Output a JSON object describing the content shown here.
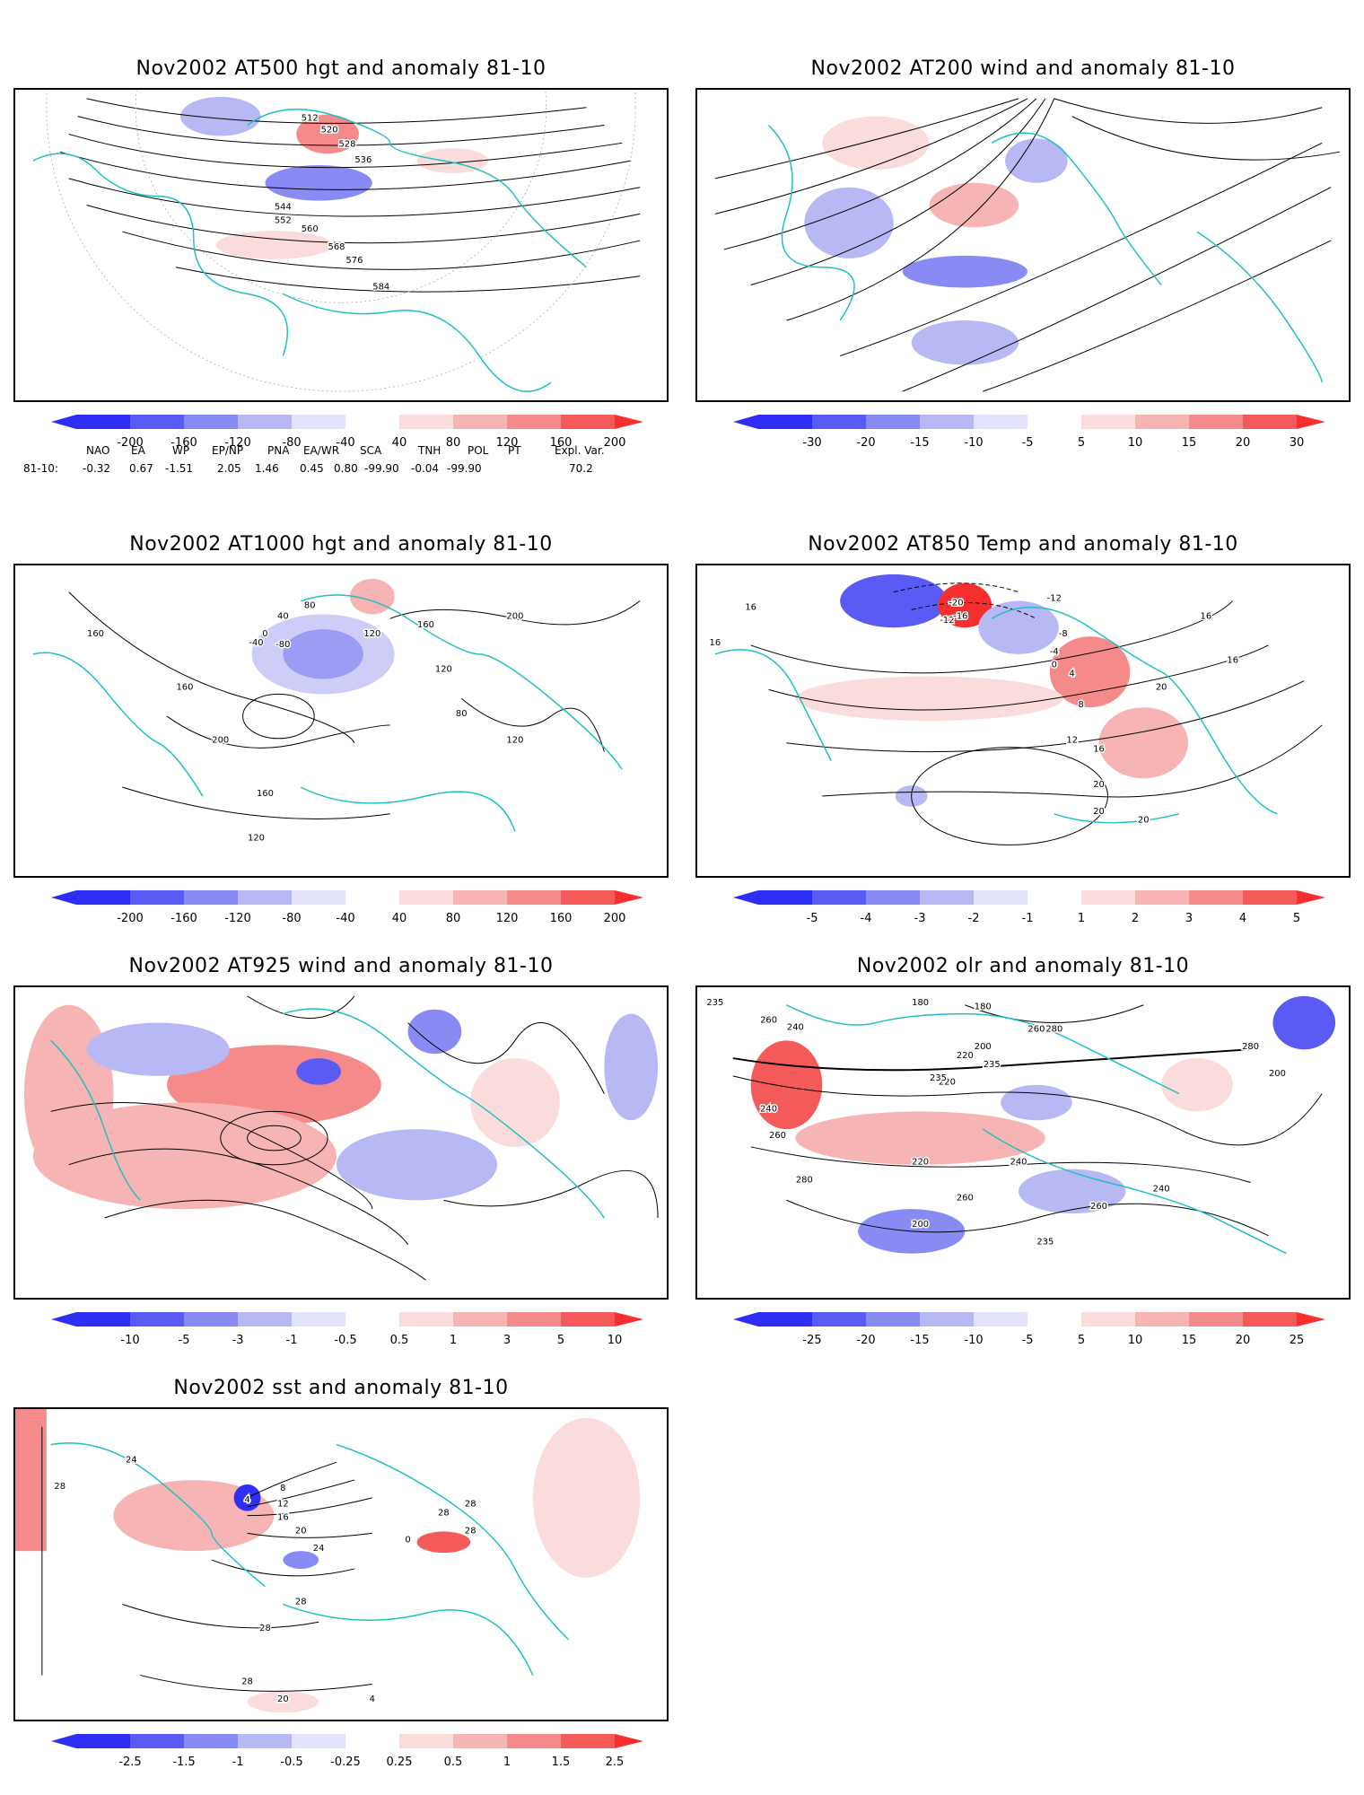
{
  "panels": [
    {
      "id": "p1",
      "title": "Nov2002 AT500 hgt and anomaly 81-10",
      "colorbar": {
        "labels": [
          "-200",
          "-160",
          "-120",
          "-80",
          "-40",
          "40",
          "80",
          "120",
          "160",
          "200"
        ]
      },
      "contour_labels": [
        "512",
        "520",
        "528",
        "536",
        "544",
        "552",
        "560",
        "568",
        "576",
        "584"
      ]
    },
    {
      "id": "p2",
      "title": "Nov2002 AT200 wind and anomaly 81-10",
      "colorbar": {
        "labels": [
          "-30",
          "-20",
          "-15",
          "-10",
          "-5",
          "5",
          "10",
          "15",
          "20",
          "30"
        ]
      },
      "contour_labels": []
    },
    {
      "id": "p3",
      "title": "Nov2002 AT1000 hgt and anomaly 81-10",
      "colorbar": {
        "labels": [
          "-200",
          "-160",
          "-120",
          "-80",
          "-40",
          "40",
          "80",
          "120",
          "160",
          "200"
        ]
      },
      "contour_labels": [
        "160",
        "160",
        "200",
        "160",
        "120",
        "-80",
        "-40",
        "0",
        "40",
        "80",
        "120",
        "160",
        "200",
        "120",
        "80",
        "120"
      ]
    },
    {
      "id": "p4",
      "title": "Nov2002 AT850 Temp and anomaly 81-10",
      "colorbar": {
        "labels": [
          "-5",
          "-4",
          "-3",
          "-2",
          "-1",
          "1",
          "2",
          "3",
          "4",
          "5"
        ]
      },
      "contour_labels": [
        "16",
        "16",
        "-12",
        "-20",
        "-16",
        "-12",
        "-8",
        "-4",
        "0",
        "4",
        "8",
        "12",
        "16",
        "16",
        "20",
        "16",
        "20",
        "20",
        "20"
      ]
    },
    {
      "id": "p5",
      "title": "Nov2002 AT925 wind and anomaly 81-10",
      "colorbar": {
        "labels": [
          "-10",
          "-5",
          "-3",
          "-1",
          "-0.5",
          "0.5",
          "1",
          "3",
          "5",
          "10"
        ]
      },
      "contour_labels": []
    },
    {
      "id": "p6",
      "title": "Nov2002 olr and anomaly 81-10",
      "colorbar": {
        "labels": [
          "-25",
          "-20",
          "-15",
          "-10",
          "-5",
          "5",
          "10",
          "15",
          "20",
          "25"
        ]
      },
      "contour_labels": [
        "235",
        "260",
        "240",
        "180",
        "180",
        "200",
        "220",
        "235",
        "260",
        "280",
        "220",
        "235",
        "240",
        "260",
        "280",
        "200",
        "220",
        "240",
        "260",
        "235",
        "240",
        "260",
        "280",
        "200"
      ]
    },
    {
      "id": "p7",
      "title": "Nov2002 sst and anomaly 81-10",
      "colorbar": {
        "labels": [
          "-2.5",
          "-1.5",
          "-1",
          "-0.5",
          "-0.25",
          "0.25",
          "0.5",
          "1",
          "1.5",
          "2.5"
        ]
      },
      "contour_labels": [
        "28",
        "24",
        "4",
        "8",
        "12",
        "16",
        "20",
        "24",
        "28",
        "28",
        "28",
        "20",
        "4",
        "0",
        "28",
        "28",
        "28"
      ]
    }
  ],
  "indices": {
    "headers": [
      "NAO",
      "EA",
      "WP",
      "EP/NP",
      "PNA",
      "EA/WR",
      "SCA",
      "TNH",
      "POL",
      "PT",
      "Expl. Var."
    ],
    "row_label": "81-10:",
    "values": [
      "-0.32",
      "0.67",
      "-1.51",
      "2.05",
      "1.46",
      "0.45",
      "0.80",
      "-99.90",
      "-0.04",
      "-99.90",
      "70.2"
    ]
  },
  "colors": {
    "coast": "#20c0c0",
    "contour": "#000000",
    "neg_ramp": [
      "#2e2ef5",
      "#5a5af5",
      "#8a8af5",
      "#b8b8f5",
      "#e2e2fa"
    ],
    "pos_ramp": [
      "#fadcdc",
      "#f7b4b4",
      "#f58a8a",
      "#f55a5a",
      "#f52e2e"
    ]
  }
}
